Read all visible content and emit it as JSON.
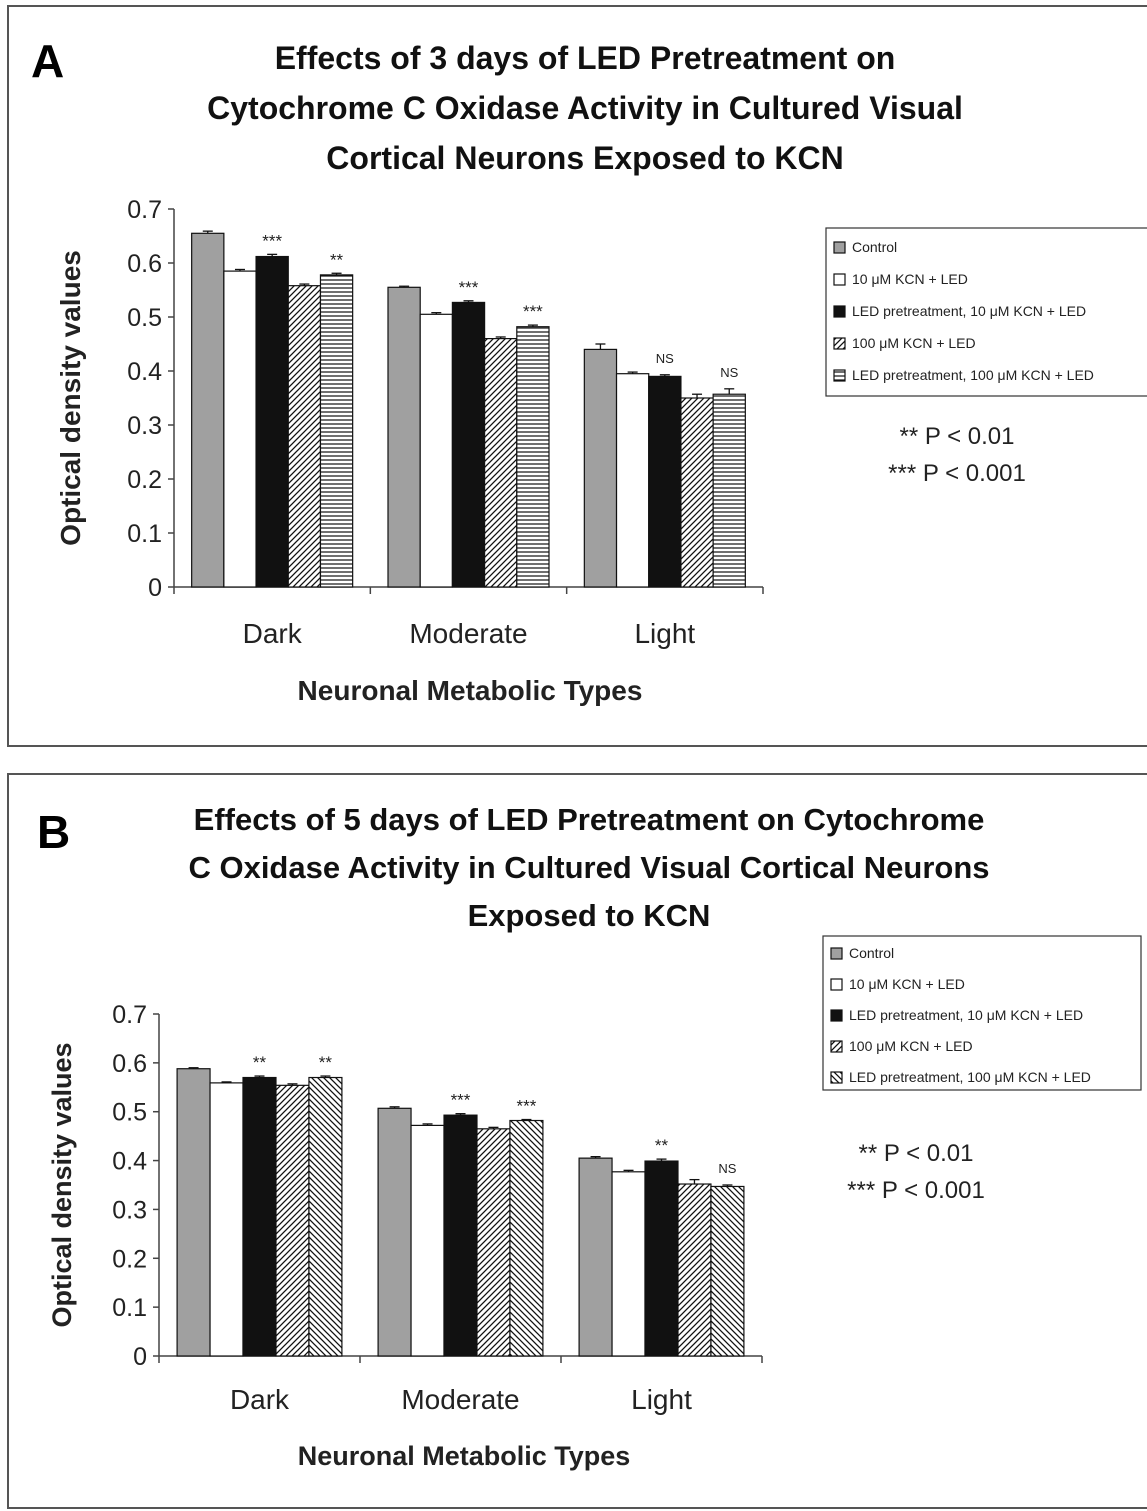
{
  "colors": {
    "control": "#a0a0a0",
    "black": "#111111",
    "axis": "#444444",
    "frame": "#555555"
  },
  "chart_data": [
    {
      "panel_label": "A",
      "type": "bar",
      "title_lines": [
        "Effects of 3 days of LED Pretreatment on",
        "Cytochrome C Oxidase Activity in Cultured Visual",
        "Cortical Neurons Exposed to KCN"
      ],
      "xlabel": "Neuronal Metabolic Types",
      "ylabel": "Optical density values",
      "ylim": [
        0,
        0.7
      ],
      "yticks": [
        "0",
        "0.1",
        "0.2",
        "0.3",
        "0.4",
        "0.5",
        "0.6",
        "0.7"
      ],
      "categories": [
        "Dark",
        "Moderate",
        "Light"
      ],
      "series": [
        {
          "name": "Control",
          "pattern": "gray",
          "values": [
            0.655,
            0.555,
            0.44
          ],
          "errors": [
            0.004,
            0.002,
            0.01
          ]
        },
        {
          "name": "10 μM KCN + LED",
          "pattern": "white",
          "values": [
            0.585,
            0.505,
            0.395
          ],
          "errors": [
            0.003,
            0.003,
            0.003
          ]
        },
        {
          "name": "LED pretreatment, 10 μM KCN + LED",
          "pattern": "black",
          "values": [
            0.612,
            0.527,
            0.39
          ],
          "errors": [
            0.004,
            0.003,
            0.003
          ]
        },
        {
          "name": "100 μM KCN + LED",
          "pattern": "diag-up",
          "values": [
            0.558,
            0.46,
            0.35
          ],
          "errors": [
            0.003,
            0.003,
            0.007
          ]
        },
        {
          "name": "LED pretreatment, 100 μM KCN + LED",
          "pattern": "horizontal",
          "values": [
            0.578,
            0.482,
            0.357
          ],
          "errors": [
            0.003,
            0.003,
            0.01
          ]
        }
      ],
      "significance": [
        {
          "category": 0,
          "series": 2,
          "label": "***"
        },
        {
          "category": 0,
          "series": 4,
          "label": "**"
        },
        {
          "category": 1,
          "series": 2,
          "label": "***"
        },
        {
          "category": 1,
          "series": 4,
          "label": "***"
        },
        {
          "category": 2,
          "series": 2,
          "label": "NS"
        },
        {
          "category": 2,
          "series": 4,
          "label": "NS"
        }
      ],
      "notes": [
        "** P < 0.01",
        "*** P < 0.001"
      ],
      "legend_position": "right"
    },
    {
      "panel_label": "B",
      "type": "bar",
      "title_lines": [
        "Effects of 5 days of LED Pretreatment on Cytochrome",
        "C Oxidase Activity in Cultured Visual Cortical Neurons",
        "Exposed to KCN"
      ],
      "xlabel": "Neuronal Metabolic Types",
      "ylabel": "Optical density values",
      "ylim": [
        0,
        0.7
      ],
      "yticks": [
        "0",
        "0.1",
        "0.2",
        "0.3",
        "0.4",
        "0.5",
        "0.6",
        "0.7"
      ],
      "categories": [
        "Dark",
        "Moderate",
        "Light"
      ],
      "series": [
        {
          "name": "Control",
          "pattern": "gray",
          "values": [
            0.588,
            0.507,
            0.405
          ],
          "errors": [
            0.002,
            0.003,
            0.003
          ]
        },
        {
          "name": "10 μM KCN + LED",
          "pattern": "white",
          "values": [
            0.559,
            0.472,
            0.377
          ],
          "errors": [
            0.002,
            0.003,
            0.003
          ]
        },
        {
          "name": "LED pretreatment, 10 μM KCN + LED",
          "pattern": "black",
          "values": [
            0.57,
            0.493,
            0.399
          ],
          "errors": [
            0.003,
            0.003,
            0.004
          ]
        },
        {
          "name": "100 μM KCN + LED",
          "pattern": "diag-up",
          "values": [
            0.554,
            0.465,
            0.352
          ],
          "errors": [
            0.003,
            0.003,
            0.009
          ]
        },
        {
          "name": "LED pretreatment, 100 μM KCN + LED",
          "pattern": "diag-down",
          "values": [
            0.57,
            0.482,
            0.347
          ],
          "errors": [
            0.003,
            0.002,
            0.003
          ]
        }
      ],
      "significance": [
        {
          "category": 0,
          "series": 2,
          "label": "**"
        },
        {
          "category": 0,
          "series": 4,
          "label": "**"
        },
        {
          "category": 1,
          "series": 2,
          "label": "***"
        },
        {
          "category": 1,
          "series": 4,
          "label": "***"
        },
        {
          "category": 2,
          "series": 2,
          "label": "**"
        },
        {
          "category": 2,
          "series": 4,
          "label": "NS"
        }
      ],
      "notes": [
        "** P < 0.01",
        "*** P < 0.001"
      ],
      "legend_position": "right"
    }
  ]
}
